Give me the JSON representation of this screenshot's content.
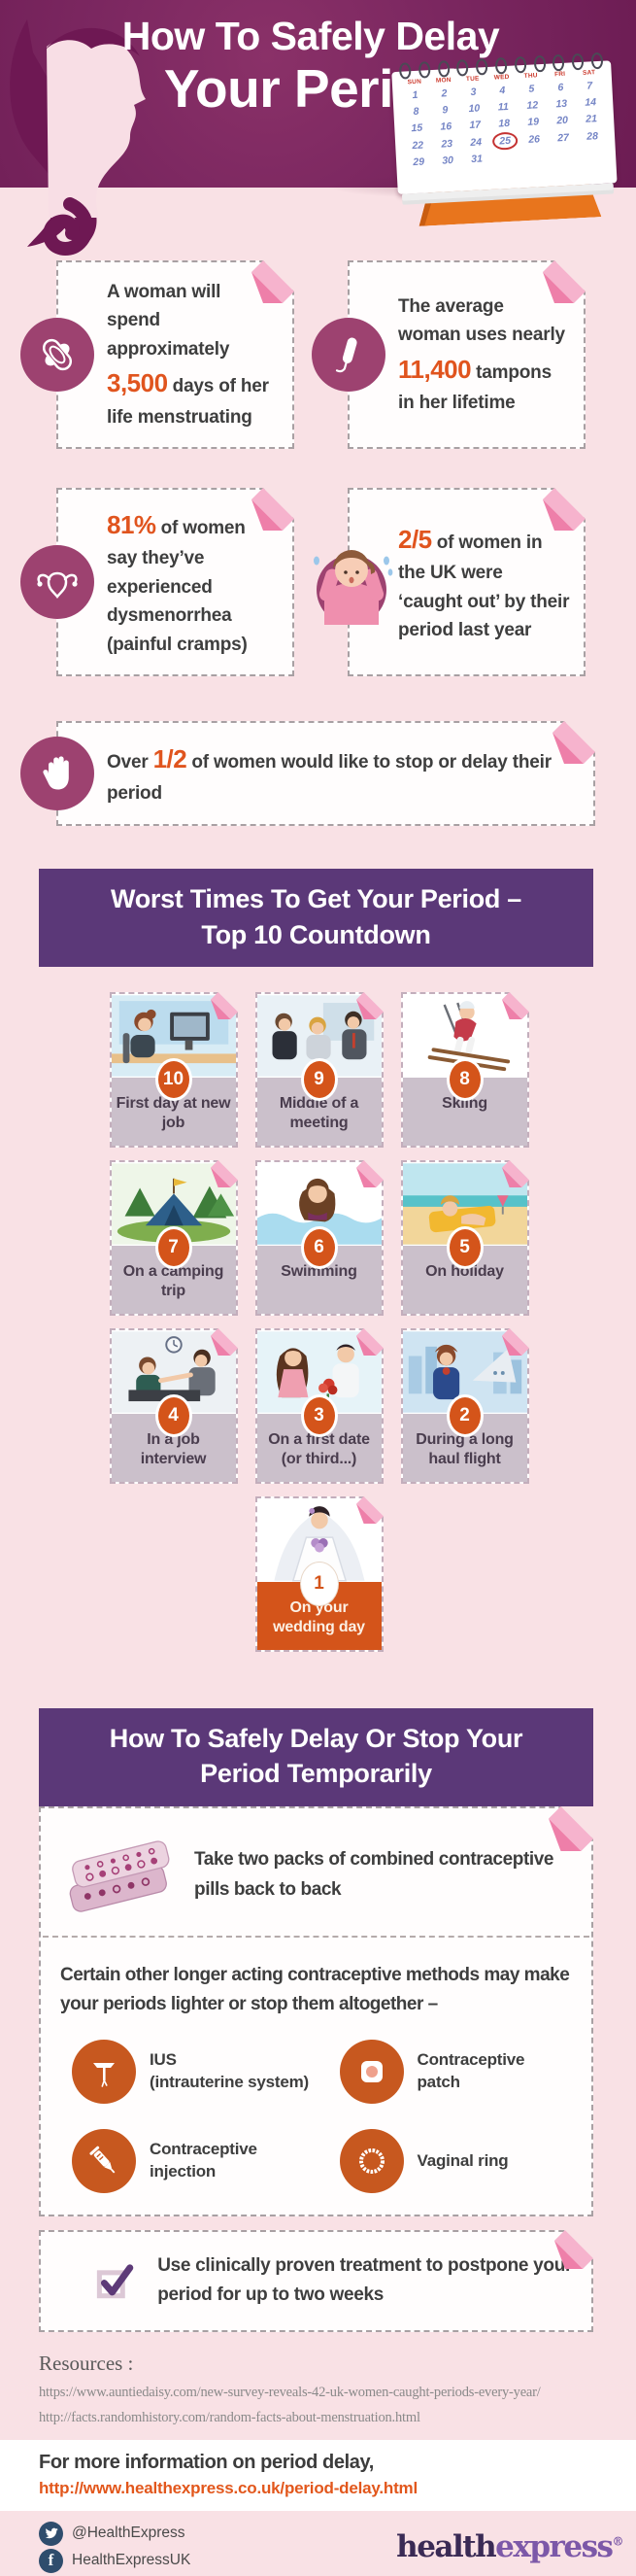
{
  "colors": {
    "background_pink": "#f9e1e5",
    "header_purple": "#7b2760",
    "banner_purple": "#5b3878",
    "accent_orange": "#e0541e",
    "badge_orange": "#d4541a",
    "icon_maroon": "#9d4270",
    "method_circle_orange": "#c7581f",
    "card_label_mauve": "#cbc0cb",
    "fold_pink_light": "#f6b3cd",
    "fold_pink_dark": "#ee7fa9",
    "logo_navy": "#3a2a55",
    "logo_purple": "#7c58a8"
  },
  "header": {
    "title_line1": "How To Safely Delay",
    "title_line2": "Your Period",
    "calendar": {
      "weekdays": [
        "SUN",
        "MON",
        "TUE",
        "WED",
        "THU",
        "FRI",
        "SAT"
      ],
      "days": [
        "1",
        "2",
        "3",
        "4",
        "5",
        "6",
        "7",
        "8",
        "9",
        "10",
        "11",
        "12",
        "13",
        "14",
        "15",
        "16",
        "17",
        "18",
        "19",
        "20",
        "21",
        "22",
        "23",
        "24",
        "25",
        "26",
        "27",
        "28",
        "29",
        "30",
        "31"
      ],
      "circled_day": "25"
    }
  },
  "stats": [
    {
      "icon": "sanitary-pad-icon",
      "pre": "A woman will spend approximately ",
      "highlight": "3,500",
      "post": " days of her life menstruating"
    },
    {
      "icon": "tampon-icon",
      "pre": "The average woman uses nearly ",
      "highlight": "11,400",
      "post": " tampons in her lifetime"
    },
    {
      "icon": "uterus-icon",
      "pre": "",
      "highlight": "81%",
      "post": " of women say they’ve experienced dysmenorrhea (painful cramps)"
    },
    {
      "icon": "worried-woman-illustration",
      "pre": "",
      "highlight": "2/5",
      "post": " of women in the UK were ‘caught out’ by their period last year"
    },
    {
      "icon": "hand-stop-icon",
      "pre": "Over ",
      "highlight": "1/2",
      "post": " of women would like to stop or delay their period"
    }
  ],
  "countdown": {
    "title_line1": "Worst Times To Get Your Period –",
    "title_line2": "Top 10 Countdown",
    "items": [
      {
        "rank": "10",
        "label": "First day at new job",
        "icon": "new-job-illustration"
      },
      {
        "rank": "9",
        "label": "Middle of a meeting",
        "icon": "meeting-illustration"
      },
      {
        "rank": "8",
        "label": "Skiing",
        "icon": "skiing-illustration"
      },
      {
        "rank": "7",
        "label": "On a camping trip",
        "icon": "camping-illustration"
      },
      {
        "rank": "6",
        "label": "Swimming",
        "icon": "swimming-illustration"
      },
      {
        "rank": "5",
        "label": "On holiday",
        "icon": "holiday-illustration"
      },
      {
        "rank": "4",
        "label": "In a job interview",
        "icon": "job-interview-illustration"
      },
      {
        "rank": "3",
        "label": "On a first date (or third...)",
        "icon": "first-date-illustration"
      },
      {
        "rank": "2",
        "label": "During a long haul flight",
        "icon": "long-haul-flight-illustration"
      },
      {
        "rank": "1",
        "label": "On your wedding day",
        "icon": "wedding-illustration"
      }
    ]
  },
  "delay_section": {
    "title_line1": "How To Safely Delay Or Stop Your",
    "title_line2": "Period Temporarily",
    "pill_icon": "contraceptive-pill-packs-illustration",
    "pill_tip": "Take two packs of combined contraceptive pills back to back",
    "methods_intro": "Certain other longer acting contraceptive methods may make your periods lighter or stop them altogether –",
    "methods": [
      {
        "icon": "ius-icon",
        "line1": "IUS",
        "line2": "(intrauterine system)"
      },
      {
        "icon": "contraceptive-patch-icon",
        "line1": "Contraceptive",
        "line2": "patch"
      },
      {
        "icon": "contraceptive-injection-icon",
        "line1": "Contraceptive",
        "line2": "injection"
      },
      {
        "icon": "vaginal-ring-icon",
        "line1": "Vaginal ring",
        "line2": ""
      }
    ]
  },
  "treatment_note": {
    "icon": "checkbox-tick-icon",
    "text": "Use clinically proven treatment to postpone your period for up to two weeks"
  },
  "resources": {
    "heading": "Resources :",
    "links": [
      "https://www.auntiedaisy.com/new-survey-reveals-42-uk-women-caught-periods-every-year/",
      "http://facts.randomhistory.com/random-facts-about-menstruation.html"
    ]
  },
  "more_info": {
    "label": "For more information on period delay,",
    "link": "http://www.healthexpress.co.uk/period-delay.html"
  },
  "footer": {
    "twitter_handle": "@HealthExpress",
    "facebook_handle": "HealthExpressUK",
    "logo_part1": "health",
    "logo_part2": "express",
    "logo_reg": "®"
  }
}
